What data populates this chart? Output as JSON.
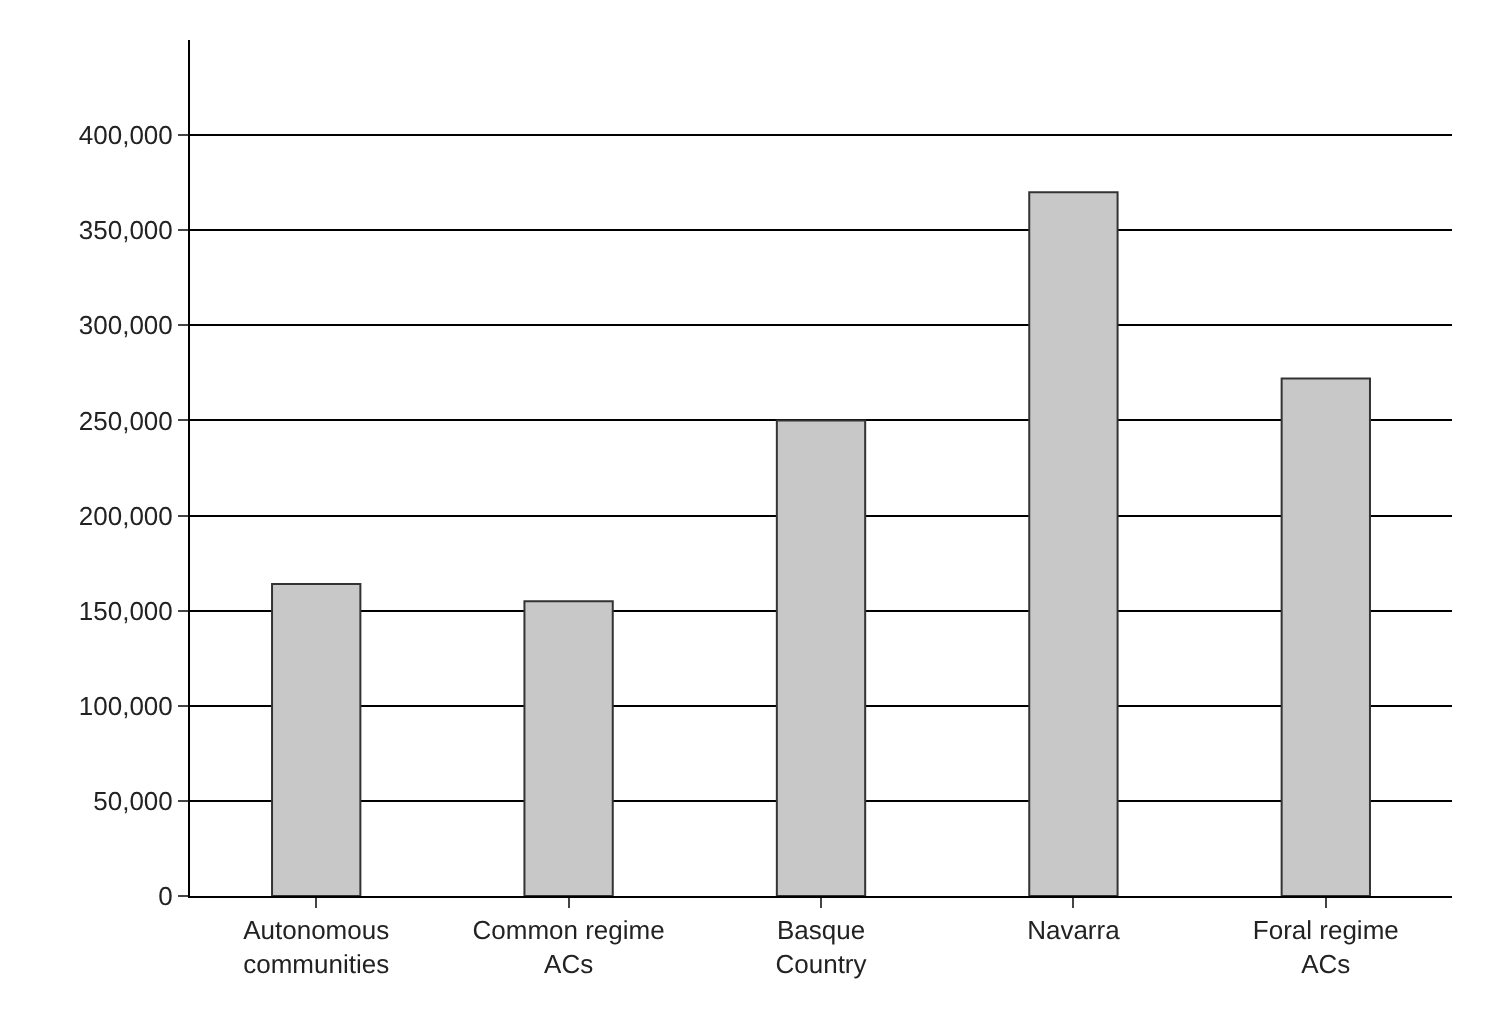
{
  "chart_data": {
    "type": "bar",
    "categories": [
      "Autonomous communities",
      "Common regime ACs",
      "Basque Country",
      "Navarra",
      "Foral regime ACs"
    ],
    "values": [
      164000,
      155000,
      250000,
      370000,
      272000
    ],
    "color": "#c8c8c8",
    "ylim": [
      0,
      450000
    ],
    "yticks": [
      {
        "value": 0,
        "label": "0"
      },
      {
        "value": 50000,
        "label": "50,000"
      },
      {
        "value": 100000,
        "label": "100,000"
      },
      {
        "value": 150000,
        "label": "150,000"
      },
      {
        "value": 200000,
        "label": "200,000"
      },
      {
        "value": 250000,
        "label": "250,000"
      },
      {
        "value": 300000,
        "label": "300,000"
      },
      {
        "value": 350000,
        "label": "350,000"
      },
      {
        "value": 400000,
        "label": "400,000"
      }
    ],
    "grid": "y"
  }
}
